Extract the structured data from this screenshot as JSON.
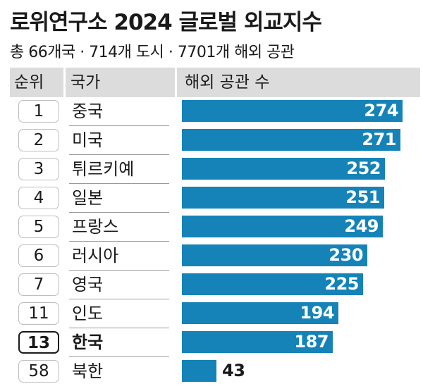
{
  "title": "로위연구소 2024 글로벌 외교지수",
  "subtitle": "총 66개국 · 714개 도시 · 7701개 해외 공관",
  "columns": {
    "rank": "순위",
    "country": "국가",
    "value": "해외 공관 수"
  },
  "colors": {
    "bar": "#1583b7",
    "header_band": "#dcdcdc"
  },
  "chart_data": {
    "type": "bar",
    "orientation": "horizontal",
    "title": "로위연구소 2024 글로벌 외교지수",
    "subtitle": "총 66개국 · 714개 도시 · 7701개 해외 공관",
    "xlabel": "해외 공관 수",
    "xlim": [
      0,
      280
    ],
    "highlight": "한국",
    "rows": [
      {
        "rank": "1",
        "country": "중국",
        "value": 274
      },
      {
        "rank": "2",
        "country": "미국",
        "value": 271
      },
      {
        "rank": "3",
        "country": "튀르키예",
        "value": 252
      },
      {
        "rank": "4",
        "country": "일본",
        "value": 251
      },
      {
        "rank": "5",
        "country": "프랑스",
        "value": 249
      },
      {
        "rank": "6",
        "country": "러시아",
        "value": 230
      },
      {
        "rank": "7",
        "country": "영국",
        "value": 225
      },
      {
        "rank": "11",
        "country": "인도",
        "value": 194
      },
      {
        "rank": "13",
        "country": "한국",
        "value": 187
      },
      {
        "rank": "58",
        "country": "북한",
        "value": 43
      }
    ]
  }
}
